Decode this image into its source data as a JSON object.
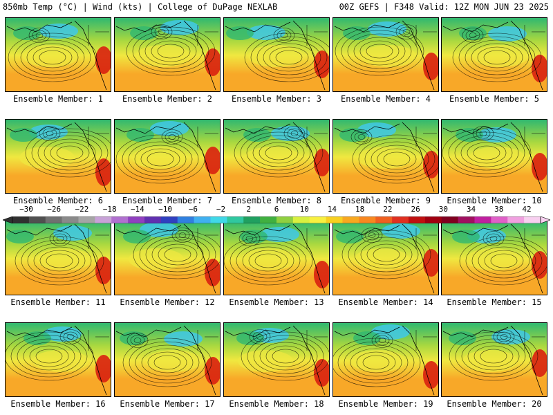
{
  "header": {
    "title_left": "850mb Temp (°C) | Wind (kts) | College of DuPage NEXLAB",
    "title_right": "00Z GEFS | F348 Valid: 12Z MON JUN 23 2025"
  },
  "panel_label_prefix": "Ensemble Member: ",
  "members": [
    {
      "label": "Ensemble Member: 1"
    },
    {
      "label": "Ensemble Member: 2"
    },
    {
      "label": "Ensemble Member: 3"
    },
    {
      "label": "Ensemble Member: 4"
    },
    {
      "label": "Ensemble Member: 5"
    },
    {
      "label": "Ensemble Member: 6"
    },
    {
      "label": "Ensemble Member: 7"
    },
    {
      "label": "Ensemble Member: 8"
    },
    {
      "label": "Ensemble Member: 9"
    },
    {
      "label": "Ensemble Member: 10"
    },
    {
      "label": "Ensemble Member: 11"
    },
    {
      "label": "Ensemble Member: 12"
    },
    {
      "label": "Ensemble Member: 13"
    },
    {
      "label": "Ensemble Member: 14"
    },
    {
      "label": "Ensemble Member: 15"
    },
    {
      "label": "Ensemble Member: 16"
    },
    {
      "label": "Ensemble Member: 17"
    },
    {
      "label": "Ensemble Member: 18"
    },
    {
      "label": "Ensemble Member: 19"
    },
    {
      "label": "Ensemble Member: 20"
    }
  ],
  "colorbar": {
    "ticks": [
      "−30",
      "−26",
      "−22",
      "−18",
      "−14",
      "−10",
      "−6",
      "−2",
      "2",
      "6",
      "10",
      "14",
      "18",
      "22",
      "26",
      "30",
      "34",
      "38",
      "42"
    ],
    "colors": [
      "#303030",
      "#505050",
      "#707070",
      "#8a8a8a",
      "#a5a5a5",
      "#c8a2d8",
      "#b070d0",
      "#9040c0",
      "#6030b0",
      "#3040c0",
      "#3080e0",
      "#40b0f0",
      "#40d8e8",
      "#30c8a0",
      "#20a060",
      "#40b040",
      "#90d040",
      "#d8f040",
      "#f8f040",
      "#f8d020",
      "#f8a820",
      "#f88820",
      "#f06020",
      "#e03020",
      "#c01010",
      "#a00010",
      "#800020",
      "#a01060",
      "#c020a0",
      "#e060c8",
      "#f0a0e0",
      "#f8d0f0"
    ]
  },
  "map_colors": {
    "cold": "#40c8e8",
    "cool": "#30b870",
    "mild": "#a8d840",
    "warm_yellow": "#f0e840",
    "warm_orange": "#f8a828",
    "hot": "#d82010"
  }
}
